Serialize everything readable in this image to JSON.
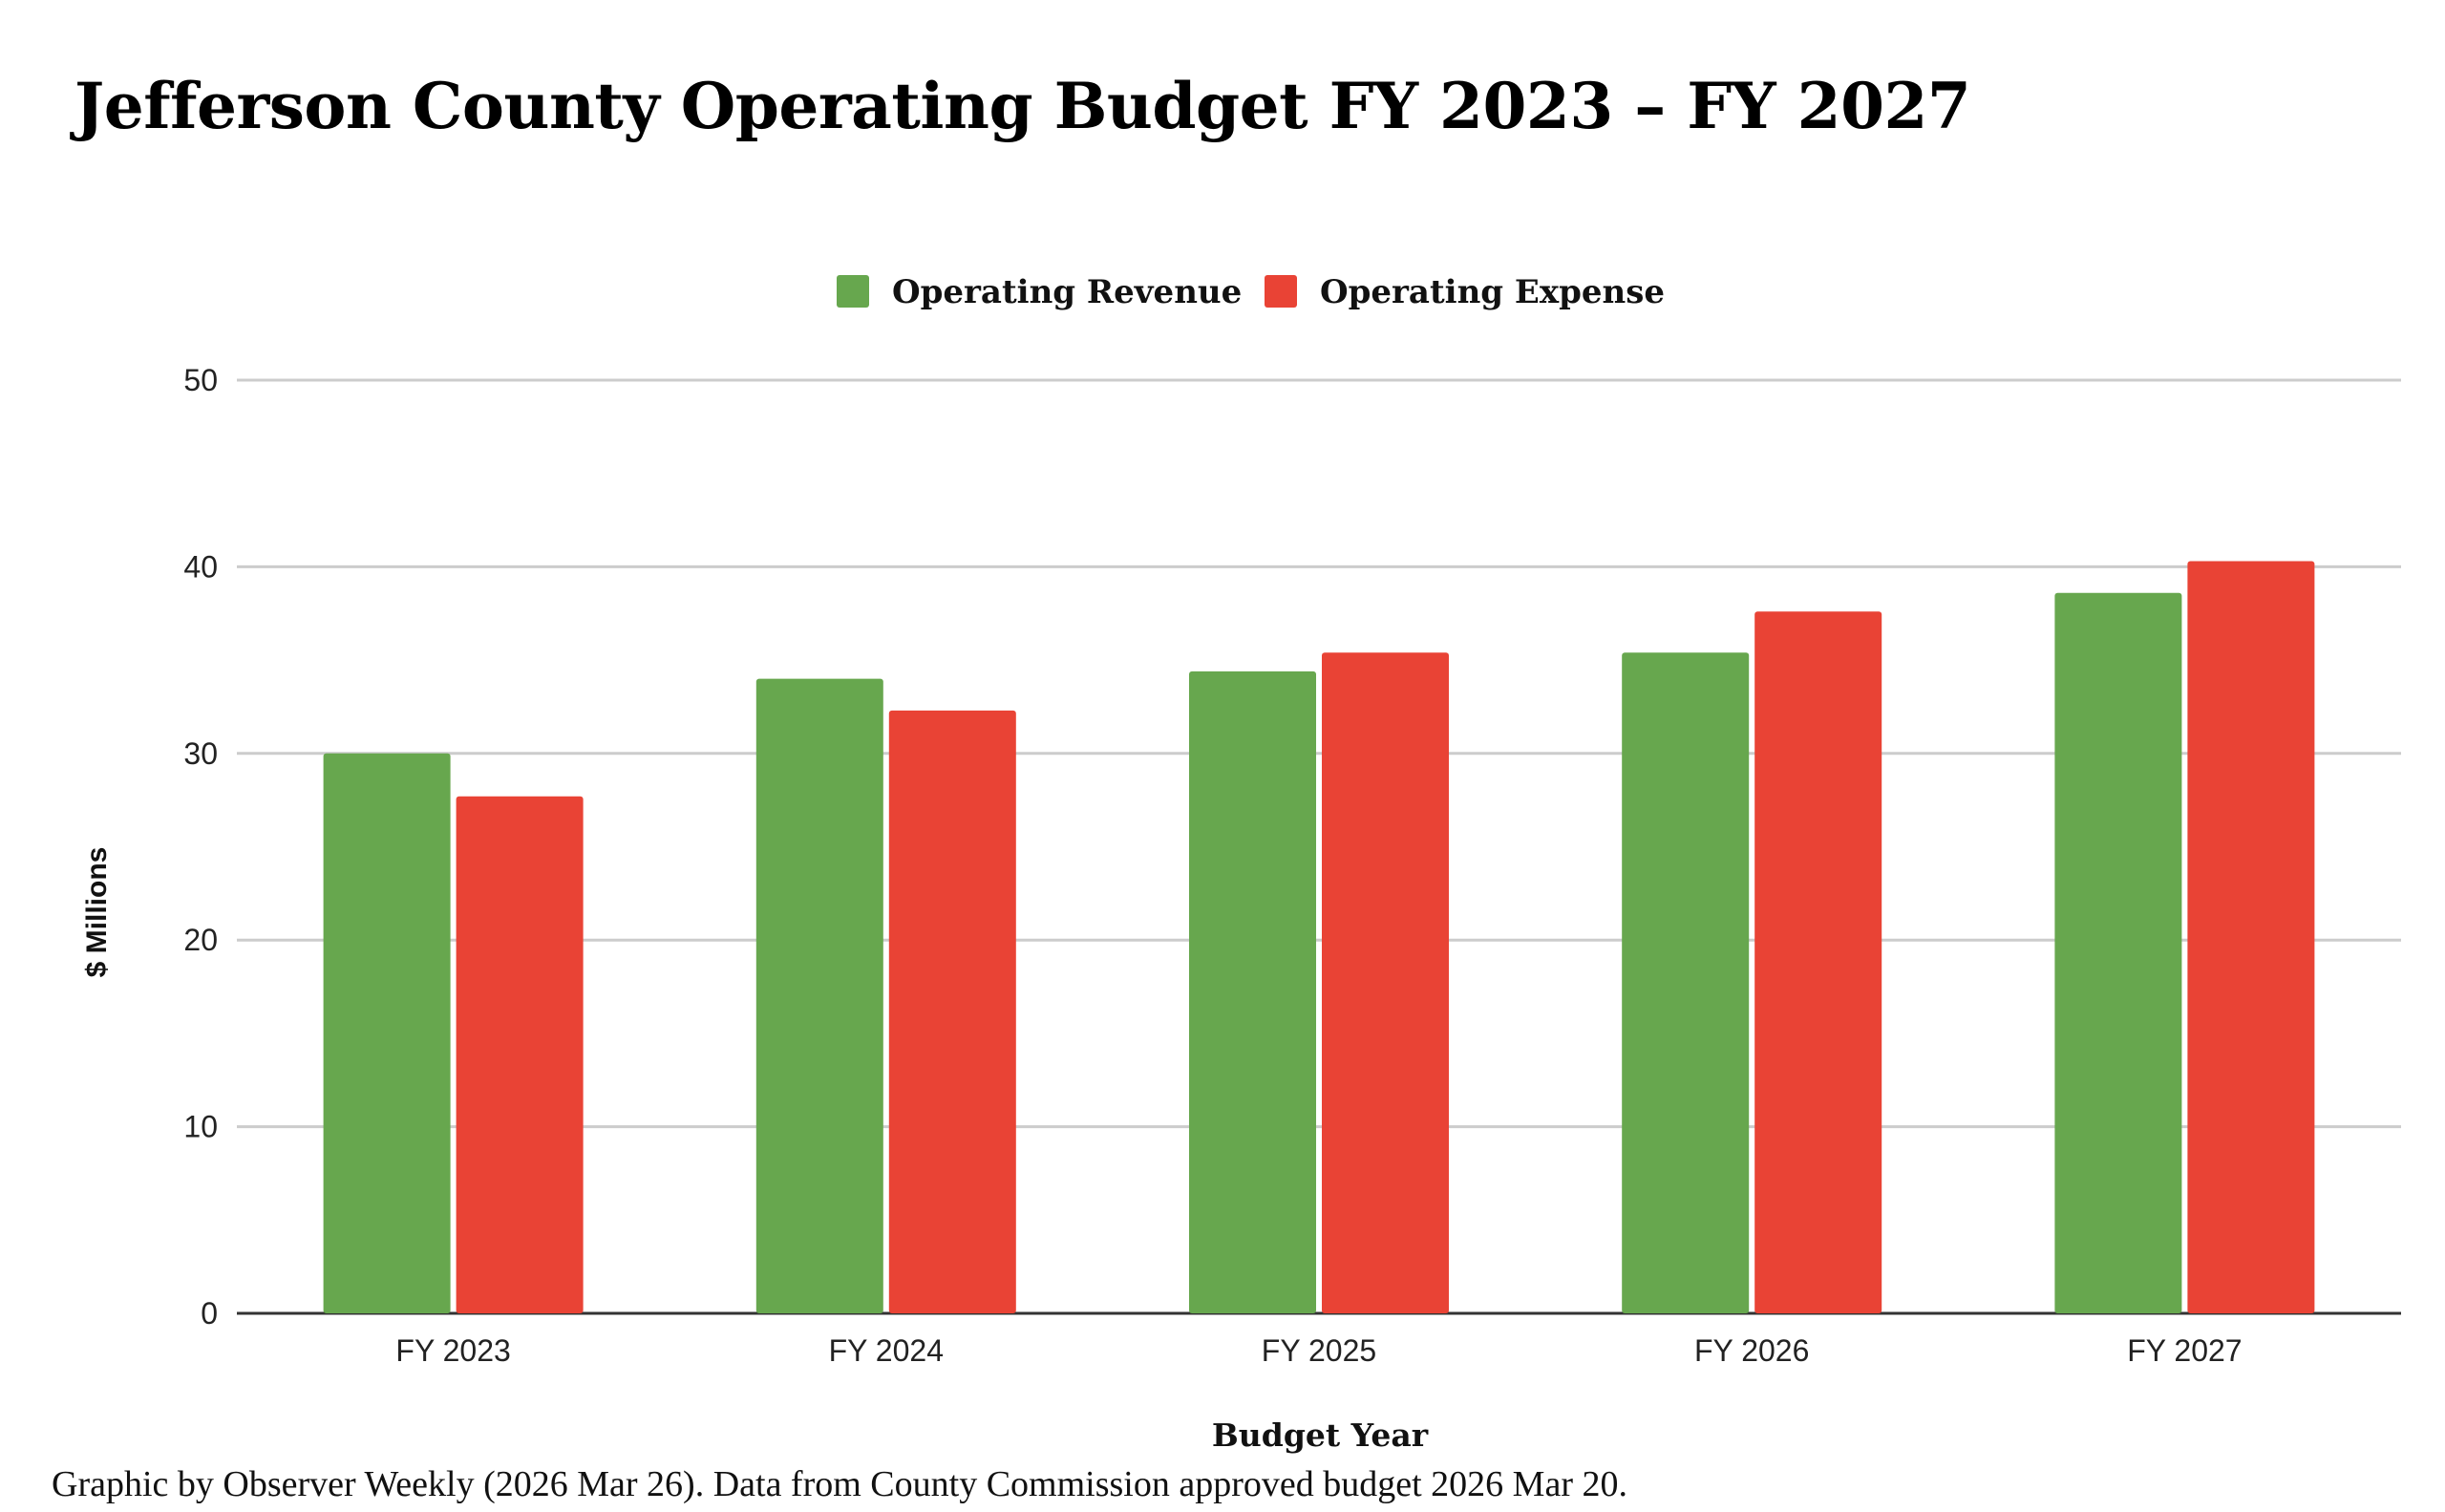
{
  "chart_data": {
    "type": "bar",
    "title": "Jefferson County Operating Budget FY 2023 – FY 2027",
    "xlabel": "Budget Year",
    "ylabel": "$ Millions",
    "ylim": [
      0,
      50
    ],
    "yticks": [
      0,
      10,
      20,
      30,
      40,
      50
    ],
    "grid": true,
    "legend_position": "top-center",
    "categories": [
      "FY 2023",
      "FY 2024",
      "FY 2025",
      "FY 2026",
      "FY 2027"
    ],
    "series": [
      {
        "name": "Operating Revenue",
        "color": "#67a74e",
        "values": [
          30.0,
          34.0,
          34.4,
          35.4,
          38.6
        ]
      },
      {
        "name": "Operating Expense",
        "color": "#e94335",
        "values": [
          27.7,
          32.3,
          35.4,
          37.6,
          40.3
        ]
      }
    ]
  },
  "footnote": "Graphic by Observer Weekly (2026 Mar 26). Data from County Commission approved budget 2026 Mar 20."
}
